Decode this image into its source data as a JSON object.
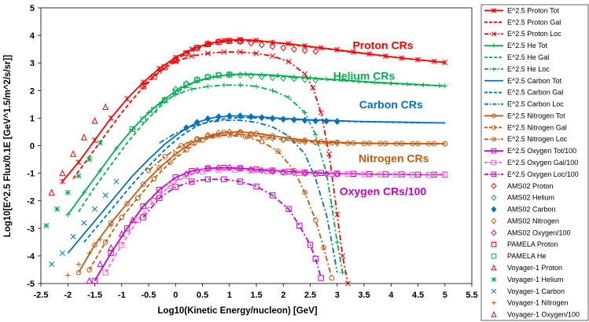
{
  "chart_data": {
    "type": "scatter",
    "title": "",
    "xlabel": "Log10(Kinetic Energy/nucleon) [GeV]",
    "ylabel": "Log10[E^2.5 Flux/0.1E [GeV^1.5/m^2/s/sr]]",
    "xlim": [
      -2.5,
      5.5
    ],
    "ylim": [
      -5,
      5
    ],
    "x_ticks": [
      "-2.5",
      "-2",
      "-1.5",
      "-1",
      "-0.5",
      "0",
      "0.5",
      "1",
      "1.5",
      "2",
      "2.5",
      "3",
      "3.5",
      "4",
      "4.5",
      "5",
      "5.5"
    ],
    "y_ticks": [
      "-5",
      "-4",
      "-3",
      "-2",
      "-1",
      "0",
      "1",
      "2",
      "3",
      "4",
      "5"
    ],
    "grid": false,
    "legend_position": "right",
    "annotations": [
      {
        "text": "Proton CRs",
        "x": 3.85,
        "y": 3.5,
        "color": "#ff0000"
      },
      {
        "text": "Helium CRs",
        "x": 3.5,
        "y": 2.4,
        "color": "#00b050"
      },
      {
        "text": "Carbon CRs",
        "x": 4.0,
        "y": 1.35,
        "color": "#0070c0"
      },
      {
        "text": "Nitrogen CRs",
        "x": 4.05,
        "y": -0.6,
        "color": "#c55a11"
      },
      {
        "text": "Oxygen CRs/100",
        "x": 3.85,
        "y": -1.8,
        "color": "#cc00cc"
      }
    ],
    "series": [
      {
        "name": "E^2.5 Proton Tot",
        "color": "#ff0000",
        "line": "solid",
        "marker": "xstar",
        "x": [
          -2.1,
          -1.8,
          -1.5,
          -1.2,
          -0.9,
          -0.6,
          -0.3,
          0,
          0.3,
          0.6,
          0.9,
          1.2,
          1.5,
          1.8,
          2.1,
          2.4,
          2.7,
          3,
          3.3,
          3.6,
          3.9,
          4.2,
          4.5,
          4.8,
          5.0
        ],
        "y": [
          -1.3,
          -0.6,
          0.2,
          1.0,
          1.7,
          2.3,
          2.8,
          3.2,
          3.5,
          3.7,
          3.82,
          3.85,
          3.82,
          3.75,
          3.7,
          3.62,
          3.55,
          3.48,
          3.4,
          3.33,
          3.25,
          3.18,
          3.12,
          3.06,
          3.02
        ]
      },
      {
        "name": "E^2.5 Proton Gal",
        "color": "#ff0000",
        "line": "dash",
        "marker": "none",
        "x": [
          -1.9,
          -1.6,
          -1.3,
          -1,
          -0.7,
          -0.4,
          -0.1,
          0.2,
          0.5,
          0.8,
          1.1,
          1.4,
          1.7,
          2.0,
          2.3,
          2.6,
          2.9,
          3.2,
          3.5,
          3.8,
          4.1,
          4.4,
          4.7,
          5.0
        ],
        "y": [
          -1.2,
          -0.4,
          0.4,
          1.2,
          1.9,
          2.5,
          3.0,
          3.35,
          3.6,
          3.75,
          3.8,
          3.8,
          3.76,
          3.7,
          3.63,
          3.56,
          3.49,
          3.41,
          3.34,
          3.27,
          3.2,
          3.13,
          3.07,
          3.01
        ]
      },
      {
        "name": "E^2.5 Proton Loc",
        "color": "#ff0000",
        "line": "dashdot",
        "marker": "cross",
        "x": [
          -0.6,
          -0.3,
          0,
          0.3,
          0.6,
          0.9,
          1.2,
          1.5,
          1.8,
          2.1,
          2.4,
          2.55,
          2.7,
          2.85,
          3.0,
          3.1,
          3.2
        ],
        "y": [
          2.2,
          2.7,
          3.05,
          3.25,
          3.35,
          3.4,
          3.4,
          3.35,
          3.25,
          3.05,
          2.6,
          2.1,
          1.2,
          -0.3,
          -2.5,
          -4.0,
          -5.0
        ]
      },
      {
        "name": "E^2.5 He Tot",
        "color": "#00b050",
        "line": "solid",
        "marker": "plus",
        "x": [
          -2.0,
          -1.7,
          -1.4,
          -1.1,
          -0.8,
          -0.5,
          -0.2,
          0.1,
          0.4,
          0.7,
          1.0,
          1.3,
          1.6,
          1.9,
          2.2,
          2.5,
          2.8,
          3.1,
          3.4,
          3.7,
          4.0,
          4.3,
          4.6,
          4.9,
          5.0
        ],
        "y": [
          -2.5,
          -1.7,
          -0.9,
          -0.1,
          0.6,
          1.2,
          1.7,
          2.1,
          2.35,
          2.5,
          2.58,
          2.6,
          2.58,
          2.55,
          2.5,
          2.46,
          2.42,
          2.38,
          2.34,
          2.3,
          2.27,
          2.24,
          2.21,
          2.18,
          2.17
        ]
      },
      {
        "name": "E^2.5 He Gal",
        "color": "#00b050",
        "line": "dash",
        "marker": "none",
        "x": [
          -1.8,
          -1.5,
          -1.2,
          -0.9,
          -0.6,
          -0.3,
          0,
          0.3,
          0.6,
          0.9,
          1.2,
          1.5,
          1.8,
          2.1,
          2.4,
          2.7,
          3.0,
          3.3,
          3.6,
          3.9,
          4.2,
          4.5,
          4.8,
          5.0
        ],
        "y": [
          -2.4,
          -1.5,
          -0.7,
          0.1,
          0.8,
          1.4,
          1.9,
          2.25,
          2.45,
          2.55,
          2.58,
          2.57,
          2.53,
          2.49,
          2.45,
          2.41,
          2.37,
          2.33,
          2.29,
          2.26,
          2.23,
          2.2,
          2.18,
          2.16
        ]
      },
      {
        "name": "E^2.5 He Loc",
        "color": "#00b050",
        "line": "dashdot",
        "marker": "plus",
        "x": [
          -0.3,
          0,
          0.3,
          0.6,
          0.9,
          1.2,
          1.5,
          1.8,
          2.1,
          2.4,
          2.6,
          2.8,
          2.9,
          3.0,
          3.1
        ],
        "y": [
          1.5,
          1.85,
          2.05,
          2.15,
          2.2,
          2.2,
          2.15,
          2.0,
          1.75,
          1.2,
          0.4,
          -1.0,
          -2.2,
          -3.5,
          -4.6
        ]
      },
      {
        "name": "E^2.5 Carbon Tot",
        "color": "#0070c0",
        "line": "solid",
        "marker": "none",
        "x": [
          -2.0,
          -1.7,
          -1.4,
          -1.1,
          -0.8,
          -0.5,
          -0.2,
          0.1,
          0.4,
          0.7,
          1.0,
          1.3,
          1.6,
          1.9,
          2.2,
          2.5,
          2.8,
          3.1,
          3.4,
          3.7,
          4.0,
          4.3,
          4.6,
          4.9,
          5.0
        ],
        "y": [
          -3.9,
          -3.2,
          -2.5,
          -1.8,
          -1.1,
          -0.5,
          0.05,
          0.5,
          0.85,
          1.02,
          1.08,
          1.08,
          1.04,
          1.0,
          0.97,
          0.94,
          0.92,
          0.9,
          0.88,
          0.87,
          0.86,
          0.85,
          0.84,
          0.83,
          0.83
        ]
      },
      {
        "name": "E^2.5 Carbon Gal",
        "color": "#0070c0",
        "line": "dash",
        "marker": "none",
        "x": [
          -1.7,
          -1.4,
          -1.1,
          -0.8,
          -0.5,
          -0.2,
          0.1,
          0.4,
          0.7,
          1.0,
          1.3,
          1.6,
          1.9,
          2.2,
          2.5,
          2.8,
          3.1,
          3.4,
          3.7,
          4.0,
          4.3,
          4.6,
          4.9,
          5.0
        ],
        "y": [
          -3.5,
          -2.8,
          -2.1,
          -1.4,
          -0.75,
          -0.15,
          0.35,
          0.72,
          0.92,
          1.0,
          1.02,
          1.0,
          0.97,
          0.95,
          0.93,
          0.91,
          0.89,
          0.87,
          0.86,
          0.85,
          0.84,
          0.83,
          0.83,
          0.82
        ]
      },
      {
        "name": "E^2.5 Carbon Loc",
        "color": "#0070c0",
        "line": "dashdot",
        "marker": "none",
        "x": [
          -0.3,
          0,
          0.3,
          0.6,
          0.9,
          1.2,
          1.5,
          1.8,
          2.1,
          2.4,
          2.6,
          2.8,
          2.9,
          3.0
        ],
        "y": [
          0.1,
          0.45,
          0.7,
          0.85,
          0.92,
          0.92,
          0.85,
          0.68,
          0.35,
          -0.3,
          -1.2,
          -2.5,
          -3.5,
          -4.6
        ]
      },
      {
        "name": "E^2.5 Nitrogen Tot",
        "color": "#c55a11",
        "line": "solid",
        "marker": "circle",
        "x": [
          -1.8,
          -1.5,
          -1.2,
          -0.9,
          -0.6,
          -0.3,
          0,
          0.3,
          0.6,
          0.9,
          1.2,
          1.5,
          1.8,
          2.1,
          2.4,
          2.7,
          3.0,
          3.3,
          3.6,
          3.9,
          4.2,
          4.5,
          4.8,
          5.0
        ],
        "y": [
          -4.6,
          -3.6,
          -2.8,
          -2.1,
          -1.4,
          -0.8,
          -0.3,
          0.1,
          0.35,
          0.48,
          0.5,
          0.45,
          0.36,
          0.27,
          0.2,
          0.15,
          0.12,
          0.1,
          0.09,
          0.08,
          0.08,
          0.07,
          0.07,
          0.07
        ]
      },
      {
        "name": "E^2.5 Nitrogen Gal",
        "color": "#c55a11",
        "line": "dash",
        "marker": "circle",
        "x": [
          -1.6,
          -1.3,
          -1.0,
          -0.7,
          -0.4,
          -0.1,
          0.2,
          0.5,
          0.8,
          1.1,
          1.4,
          1.7,
          2.0,
          2.3,
          2.6,
          2.9,
          3.2,
          3.5,
          3.8,
          4.1,
          4.4,
          4.7,
          5.0
        ],
        "y": [
          -4.5,
          -3.5,
          -2.6,
          -1.9,
          -1.2,
          -0.6,
          -0.15,
          0.2,
          0.38,
          0.42,
          0.38,
          0.3,
          0.22,
          0.16,
          0.12,
          0.1,
          0.09,
          0.08,
          0.08,
          0.07,
          0.07,
          0.07,
          0.07
        ]
      },
      {
        "name": "E^2.5 Nitrogen Loc",
        "color": "#c55a11",
        "line": "dashdot",
        "marker": "circle",
        "x": [
          -0.5,
          -0.2,
          0.1,
          0.4,
          0.7,
          1.0,
          1.3,
          1.6,
          1.9,
          2.2,
          2.4,
          2.6,
          2.75,
          2.9
        ],
        "y": [
          -0.9,
          -0.4,
          0.0,
          0.25,
          0.35,
          0.38,
          0.32,
          0.15,
          -0.2,
          -0.9,
          -1.7,
          -2.7,
          -3.7,
          -4.8
        ]
      },
      {
        "name": "E^2.5 Oxygen Tot/100",
        "color": "#cc00cc",
        "line": "solid",
        "marker": "square",
        "x": [
          -1.5,
          -1.2,
          -0.9,
          -0.6,
          -0.3,
          0,
          0.3,
          0.6,
          0.9,
          1.2,
          1.5,
          1.8,
          2.1,
          2.4,
          2.7,
          3.0,
          3.3,
          3.6,
          3.9,
          4.2,
          4.5,
          4.8,
          5.0
        ],
        "y": [
          -4.9,
          -3.9,
          -3.0,
          -2.2,
          -1.6,
          -1.15,
          -0.92,
          -0.82,
          -0.8,
          -0.82,
          -0.86,
          -0.9,
          -0.94,
          -0.97,
          -0.99,
          -1.01,
          -1.02,
          -1.03,
          -1.04,
          -1.04,
          -1.05,
          -1.05,
          -1.05
        ]
      },
      {
        "name": "E^2.5 Oxygen Gal/100",
        "color": "#ff66cc",
        "line": "dash",
        "marker": "square",
        "x": [
          -1.3,
          -1.0,
          -0.7,
          -0.4,
          -0.1,
          0.2,
          0.5,
          0.8,
          1.1,
          1.4,
          1.7,
          2.0,
          2.3,
          2.6,
          2.9,
          3.2,
          3.5,
          3.8,
          4.1,
          4.4,
          4.7,
          5.0
        ],
        "y": [
          -4.6,
          -3.6,
          -2.7,
          -2.0,
          -1.45,
          -1.1,
          -0.93,
          -0.87,
          -0.87,
          -0.9,
          -0.93,
          -0.96,
          -0.99,
          -1.01,
          -1.02,
          -1.03,
          -1.04,
          -1.05,
          -1.05,
          -1.06,
          -1.06,
          -1.06
        ]
      },
      {
        "name": "E^2.5 Oxygen Loc/100",
        "color": "#cc00cc",
        "line": "dashdot",
        "marker": "square",
        "x": [
          -0.6,
          -0.3,
          0,
          0.3,
          0.6,
          0.9,
          1.2,
          1.5,
          1.8,
          2.1,
          2.3,
          2.5,
          2.6,
          2.7
        ],
        "y": [
          -2.6,
          -1.9,
          -1.5,
          -1.3,
          -1.22,
          -1.22,
          -1.3,
          -1.48,
          -1.8,
          -2.3,
          -2.9,
          -3.6,
          -4.1,
          -4.8
        ]
      },
      {
        "name": "AMS02 Proton",
        "color": "#ff0000",
        "line": "none",
        "marker": "diamond-open",
        "x": [
          0.0,
          0.2,
          0.4,
          0.6,
          0.8,
          1.0,
          1.2,
          1.4,
          1.6,
          1.8,
          2.0,
          2.2,
          2.4,
          2.6
        ],
        "y": [
          3.1,
          3.35,
          3.55,
          3.7,
          3.78,
          3.8,
          3.78,
          3.72,
          3.66,
          3.6,
          3.55,
          3.5,
          3.45,
          3.42
        ]
      },
      {
        "name": "AMS02 Helium",
        "color": "#00b050",
        "line": "none",
        "marker": "diamond-open",
        "x": [
          0.0,
          0.2,
          0.4,
          0.6,
          0.8,
          1.0,
          1.2,
          1.4,
          1.6,
          1.8,
          2.0,
          2.2,
          2.4,
          2.6
        ],
        "y": [
          2.05,
          2.25,
          2.4,
          2.5,
          2.56,
          2.58,
          2.56,
          2.53,
          2.5,
          2.47,
          2.45,
          2.43,
          2.4,
          2.38
        ]
      },
      {
        "name": "AMS02 Carbon",
        "color": "#0070c0",
        "line": "none",
        "marker": "diamond-filled",
        "x": [
          0.2,
          0.4,
          0.6,
          0.8,
          1.0,
          1.2,
          1.4,
          1.6,
          1.8,
          2.0,
          2.2,
          2.4,
          2.6,
          2.8,
          3.0
        ],
        "y": [
          0.65,
          0.85,
          0.98,
          1.05,
          1.08,
          1.08,
          1.05,
          1.02,
          0.99,
          0.96,
          0.94,
          0.92,
          0.9,
          0.89,
          0.88
        ]
      },
      {
        "name": "AMS02 Nitrogen",
        "color": "#c55a11",
        "line": "none",
        "marker": "diamond-open",
        "x": [
          0.2,
          0.4,
          0.6,
          0.8,
          1.0,
          1.2,
          1.4,
          1.6,
          1.8,
          2.0,
          2.2,
          2.4,
          2.6,
          2.8,
          3.0
        ],
        "y": [
          0.0,
          0.22,
          0.38,
          0.46,
          0.5,
          0.48,
          0.42,
          0.35,
          0.28,
          0.22,
          0.18,
          0.15,
          0.13,
          0.11,
          0.1
        ]
      },
      {
        "name": "AMS02 Oxygen/100",
        "color": "#cc00cc",
        "line": "none",
        "marker": "diamond-open",
        "x": [
          0.2,
          0.4,
          0.6,
          0.8,
          1.0,
          1.2,
          1.4,
          1.6,
          1.8,
          2.0,
          2.2,
          2.4,
          2.6,
          2.8,
          3.0
        ],
        "y": [
          -1.02,
          -0.9,
          -0.83,
          -0.8,
          -0.8,
          -0.82,
          -0.86,
          -0.9,
          -0.93,
          -0.96,
          -0.98,
          -1.0,
          -1.01,
          -1.02,
          -1.03
        ]
      },
      {
        "name": "PAMELA Proton",
        "color": "#ff0000",
        "line": "none",
        "marker": "square-open",
        "x": [
          -0.6,
          -0.4,
          -0.2,
          0.0,
          0.2,
          0.4,
          0.6,
          0.8,
          1.0,
          1.2
        ],
        "y": [
          2.15,
          2.5,
          2.85,
          3.1,
          3.35,
          3.55,
          3.68,
          3.76,
          3.8,
          3.8
        ]
      },
      {
        "name": "PAMELA He",
        "color": "#00b050",
        "line": "none",
        "marker": "square-open",
        "x": [
          -0.8,
          -0.6,
          -0.4,
          -0.2,
          0.0,
          0.2,
          0.4,
          0.6,
          0.8,
          1.0
        ],
        "y": [
          0.6,
          0.95,
          1.3,
          1.65,
          1.95,
          2.2,
          2.38,
          2.48,
          2.55,
          2.58
        ]
      },
      {
        "name": "Voyager-1 Proton",
        "color": "#ff0000",
        "line": "none",
        "marker": "triangle-open",
        "x": [
          -2.3,
          -2.1,
          -1.9,
          -1.7,
          -1.5,
          -1.3
        ],
        "y": [
          -1.7,
          -1.0,
          -0.3,
          0.3,
          0.9,
          1.4
        ]
      },
      {
        "name": "Voyager-1 Helium",
        "color": "#00b050",
        "line": "none",
        "marker": "star",
        "x": [
          -2.4,
          -2.2,
          -2.0,
          -1.8,
          -1.6,
          -1.4
        ],
        "y": [
          -2.9,
          -2.3,
          -1.7,
          -1.1,
          -0.5,
          0.1
        ]
      },
      {
        "name": "Voyager-1 Carbon",
        "color": "#0070c0",
        "line": "none",
        "marker": "x",
        "x": [
          -2.3,
          -2.1,
          -1.9,
          -1.7,
          -1.5,
          -1.3,
          -1.1
        ],
        "y": [
          -4.3,
          -3.9,
          -3.3,
          -2.8,
          -2.3,
          -1.8,
          -1.3
        ]
      },
      {
        "name": "Voyager-1 Nitrogen",
        "color": "#c55a11",
        "line": "none",
        "marker": "plus-open",
        "x": [
          -2.0,
          -1.8,
          -1.6,
          -1.4,
          -1.2
        ],
        "y": [
          -4.7,
          -4.3,
          -3.9,
          -3.4,
          -2.9
        ]
      },
      {
        "name": "Voyager-1 Oxygen/100",
        "color": "#cc00cc",
        "line": "none",
        "marker": "triangle-open",
        "x": [
          -1.6,
          -1.4,
          -1.2,
          -1.0,
          -0.8
        ],
        "y": [
          -4.9,
          -4.3,
          -3.7,
          -3.2,
          -2.7
        ]
      }
    ]
  }
}
